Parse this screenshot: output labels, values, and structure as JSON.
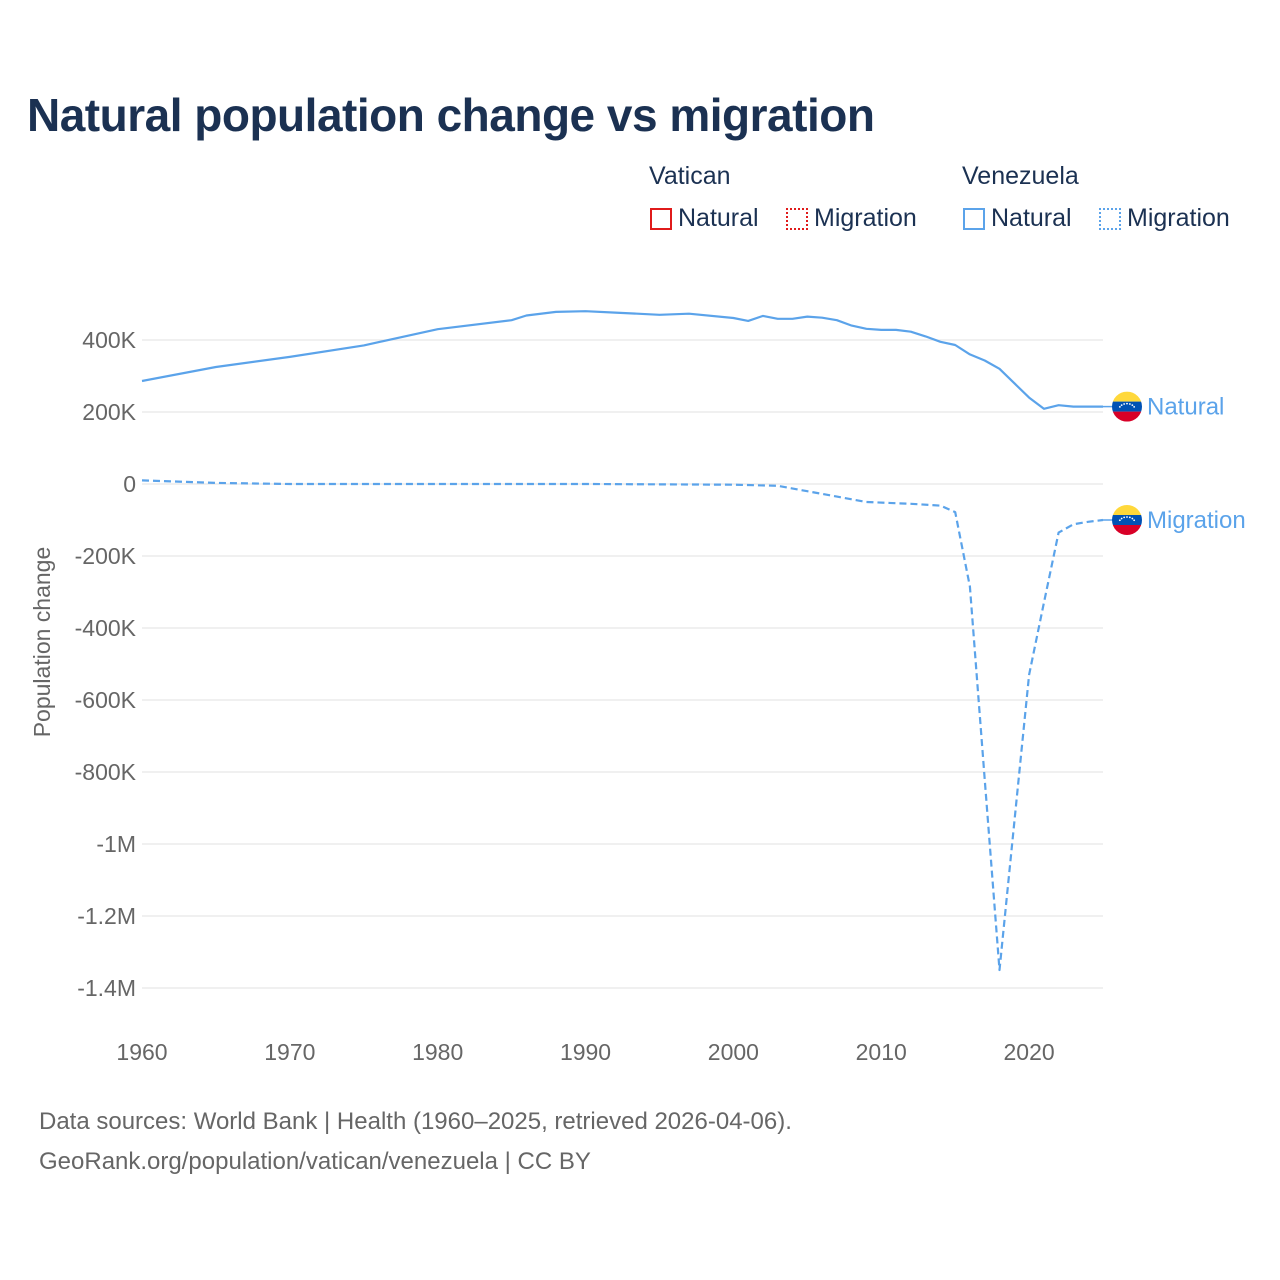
{
  "title": "Natural population change vs migration",
  "legend": {
    "groups": [
      {
        "name": "Vatican",
        "color": "#e01b1b",
        "items": [
          "Natural",
          "Migration"
        ]
      },
      {
        "name": "Venezuela",
        "color": "#5ba3ea",
        "items": [
          "Natural",
          "Migration"
        ]
      }
    ]
  },
  "footer": {
    "line1": "Data sources: World Bank | Health (1960–2025, retrieved 2026-04-06).",
    "line2": "GeoRank.org/population/vatican/venezuela | CC BY"
  },
  "chart_data": {
    "type": "line",
    "title": "Natural population change vs migration",
    "xlabel": "",
    "ylabel": "Population change",
    "xlim": [
      1960,
      2025
    ],
    "ylim": [
      -1500000,
      500000
    ],
    "x_ticks": [
      1960,
      1970,
      1980,
      1990,
      2000,
      2010,
      2020
    ],
    "x_tick_labels": [
      "1960",
      "1970",
      "1980",
      "1990",
      "2000",
      "2010",
      "2020"
    ],
    "y_ticks": [
      400000,
      200000,
      0,
      -200000,
      -400000,
      -600000,
      -800000,
      -1000000,
      -1200000,
      -1400000
    ],
    "y_tick_labels": [
      "400K",
      "200K",
      "0",
      "-200K",
      "-400K",
      "-600K",
      "-800K",
      "-1M",
      "-1.2M",
      "-1.4M"
    ],
    "grid": true,
    "series": [
      {
        "name": "Venezuela Natural",
        "end_label": "Natural",
        "color": "#5ba3ea",
        "style": "solid",
        "x": [
          1960,
          1965,
          1970,
          1975,
          1980,
          1985,
          1986,
          1988,
          1990,
          1992,
          1995,
          1997,
          2000,
          2001,
          2002,
          2003,
          2004,
          2005,
          2006,
          2007,
          2008,
          2009,
          2010,
          2011,
          2012,
          2013,
          2014,
          2015,
          2016,
          2017,
          2018,
          2019,
          2020,
          2021,
          2022,
          2023,
          2024,
          2025
        ],
        "y": [
          286000,
          325000,
          353000,
          385000,
          430000,
          455000,
          468000,
          478000,
          480000,
          476000,
          470000,
          473000,
          461000,
          453000,
          467000,
          459000,
          459000,
          465000,
          462000,
          455000,
          440000,
          431000,
          428000,
          428000,
          423000,
          410000,
          395000,
          386000,
          360000,
          343000,
          320000,
          280000,
          240000,
          209000,
          219000,
          215000,
          215000,
          215000
        ]
      },
      {
        "name": "Venezuela Migration",
        "end_label": "Migration",
        "color": "#5ba3ea",
        "style": "dashed",
        "x": [
          1960,
          1965,
          1970,
          1980,
          1990,
          2000,
          2003,
          2005,
          2007,
          2009,
          2012,
          2014,
          2015,
          2016,
          2017,
          2018,
          2019,
          2020,
          2021,
          2022,
          2023,
          2024,
          2025
        ],
        "y": [
          10000,
          3000,
          0,
          0,
          0,
          -2000,
          -5000,
          -20000,
          -35000,
          -50000,
          -55000,
          -60000,
          -78000,
          -285000,
          -820000,
          -1350000,
          -940000,
          -530000,
          -330000,
          -135000,
          -112000,
          -105000,
          -100000
        ]
      }
    ]
  }
}
